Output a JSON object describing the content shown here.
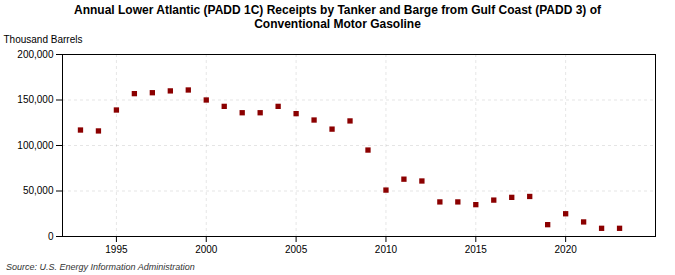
{
  "chart_data": {
    "type": "scatter",
    "title": "Annual Lower Atlantic (PADD 1C) Receipts by Tanker and Barge from Gulf Coast (PADD 3) of\nConventional Motor Gasoline",
    "ylabel": "Thousand Barrels",
    "source": "Source: U.S. Energy Information Administration",
    "x": [
      1993,
      1994,
      1995,
      1996,
      1997,
      1998,
      1999,
      2000,
      2001,
      2002,
      2003,
      2004,
      2005,
      2006,
      2007,
      2008,
      2009,
      2010,
      2011,
      2012,
      2013,
      2014,
      2015,
      2016,
      2017,
      2018,
      2019,
      2020,
      2021,
      2022,
      2023
    ],
    "values": [
      117000,
      116000,
      139000,
      157000,
      158000,
      160000,
      161000,
      150000,
      143000,
      136000,
      136000,
      143000,
      135000,
      128000,
      118000,
      127000,
      95000,
      51000,
      63000,
      61000,
      38000,
      38000,
      35000,
      40000,
      43000,
      44000,
      13000,
      25000,
      16000,
      9000,
      9000
    ],
    "color": "#8b0000",
    "marker": "square",
    "xlim": [
      1992,
      2025
    ],
    "xticks": [
      1995,
      2000,
      2005,
      2010,
      2015,
      2020
    ],
    "ylim": [
      0,
      200000
    ],
    "yticks": [
      0,
      {
        "value": 50000,
        "label": "50,000"
      },
      {
        "value": 100000,
        "label": "100,000"
      },
      {
        "value": 150000,
        "label": "150,000"
      },
      {
        "value": 200000,
        "label": "200,000"
      }
    ],
    "grid": true
  }
}
